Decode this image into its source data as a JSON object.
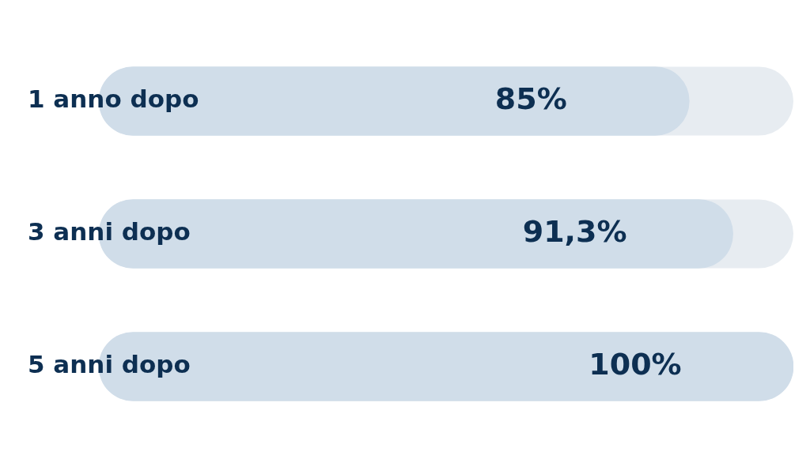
{
  "chart_data": {
    "type": "bar",
    "orientation": "horizontal",
    "categories": [
      "1 anno dopo",
      "3 anni dopo",
      "5 anni dopo"
    ],
    "values": [
      85,
      91.3,
      100
    ],
    "color": "#d0dde9",
    "value_labels": [
      "85%",
      "91,3%",
      "100%"
    ],
    "xlim": [
      0,
      100
    ],
    "tick_labels": false
  }
}
